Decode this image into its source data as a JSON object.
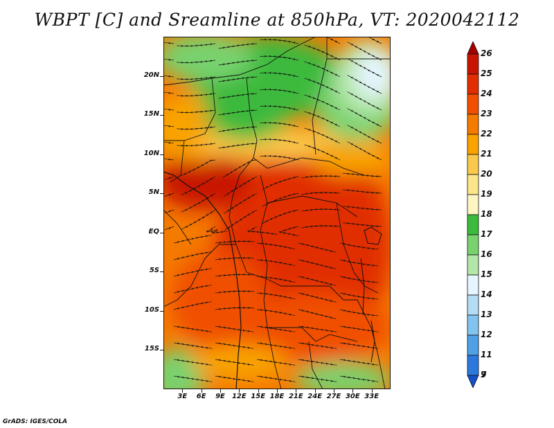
{
  "title": "WBPT [C] and Sreamline at 850hPa, VT: 2020042112",
  "footer": "GrADS: IGES/COLA",
  "map": {
    "lat_range": [
      -20,
      25
    ],
    "lon_range": [
      0,
      36
    ],
    "lat_ticks": [
      {
        "value": 20,
        "label": "20N"
      },
      {
        "value": 15,
        "label": "15N"
      },
      {
        "value": 10,
        "label": "10N"
      },
      {
        "value": 5,
        "label": "5N"
      },
      {
        "value": 0,
        "label": "EQ"
      },
      {
        "value": -5,
        "label": "5S"
      },
      {
        "value": -10,
        "label": "10S"
      },
      {
        "value": -15,
        "label": "15S"
      }
    ],
    "lon_ticks": [
      {
        "value": 3,
        "label": "3E"
      },
      {
        "value": 6,
        "label": "6E"
      },
      {
        "value": 9,
        "label": "9E"
      },
      {
        "value": 12,
        "label": "12E"
      },
      {
        "value": 15,
        "label": "15E"
      },
      {
        "value": 18,
        "label": "18E"
      },
      {
        "value": 21,
        "label": "21E"
      },
      {
        "value": 24,
        "label": "24E"
      },
      {
        "value": 27,
        "label": "27E"
      },
      {
        "value": 30,
        "label": "30E"
      },
      {
        "value": 33,
        "label": "33E"
      }
    ]
  },
  "colorbar": {
    "levels": [
      {
        "label": "26",
        "color": "#a50000"
      },
      {
        "label": "25",
        "color": "#c81400"
      },
      {
        "label": "24",
        "color": "#e12d00"
      },
      {
        "label": "23",
        "color": "#f05000"
      },
      {
        "label": "22",
        "color": "#f57a00"
      },
      {
        "label": "21",
        "color": "#f8a300"
      },
      {
        "label": "20",
        "color": "#fac84b"
      },
      {
        "label": "19",
        "color": "#fce68a"
      },
      {
        "label": "18",
        "color": "#fdf6c3"
      },
      {
        "label": "17",
        "color": "#3cba3c"
      },
      {
        "label": "16",
        "color": "#78d26e"
      },
      {
        "label": "15",
        "color": "#b4e6a8"
      },
      {
        "label": "14",
        "color": "#e6f5ff"
      },
      {
        "label": "13",
        "color": "#b4dcf5"
      },
      {
        "label": "12",
        "color": "#82c3f0"
      },
      {
        "label": "11",
        "color": "#50a0e6"
      },
      {
        "label": "9",
        "color": "#2d78dc"
      },
      {
        "label": "7",
        "color": "#1450c8"
      }
    ]
  }
}
